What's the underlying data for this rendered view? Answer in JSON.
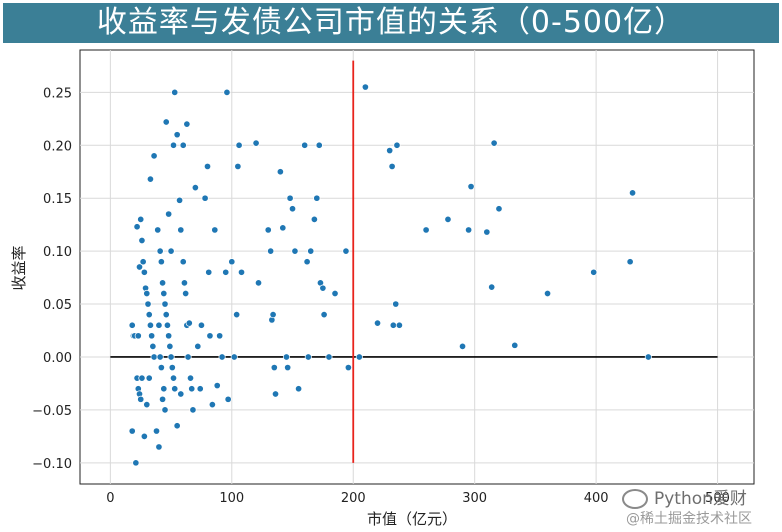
{
  "title": "收益率与发债公司市值的关系（0-500亿）",
  "watermarks": {
    "line1": "Python爱财",
    "line2": "@稀土掘金技术社区"
  },
  "colors": {
    "title_bg": "#3b7f96",
    "point": "#1f77b4",
    "vline": "#e8231c",
    "hline": "#000000",
    "grid": "#d9d9d9"
  },
  "chart_data": {
    "type": "scatter",
    "title": "收益率与发债公司市值的关系（0-500亿）",
    "xlabel": "市值（亿元）",
    "ylabel": "收益率",
    "xlim": [
      -25,
      530
    ],
    "ylim": [
      -0.12,
      0.29
    ],
    "xticks": [
      "0",
      "100",
      "200",
      "300",
      "400",
      "500"
    ],
    "yticks": [
      "0.25",
      "0.20",
      "0.15",
      "0.10",
      "0.05",
      "0.00",
      "−0.05",
      "−0.10"
    ],
    "xtick_values": [
      0,
      100,
      200,
      300,
      400,
      500
    ],
    "ytick_values": [
      0.25,
      0.2,
      0.15,
      0.1,
      0.05,
      0.0,
      -0.05,
      -0.1
    ],
    "grid": true,
    "reference_lines": {
      "horizontal": {
        "y": 0.0,
        "x_from": 0,
        "x_to": 500
      },
      "vertical": {
        "x": 200,
        "y_from": -0.1,
        "y_to": 0.28
      }
    },
    "points": [
      [
        18,
        0.03
      ],
      [
        19,
        0.02
      ],
      [
        20,
        0.02
      ],
      [
        21,
        -0.1
      ],
      [
        22,
        0.123
      ],
      [
        23,
        0.02
      ],
      [
        24,
        0.085
      ],
      [
        25,
        0.13
      ],
      [
        26,
        0.11
      ],
      [
        27,
        0.09
      ],
      [
        28,
        0.08
      ],
      [
        29,
        0.065
      ],
      [
        30,
        0.06
      ],
      [
        31,
        0.05
      ],
      [
        32,
        0.04
      ],
      [
        33,
        0.03
      ],
      [
        34,
        0.02
      ],
      [
        35,
        0.01
      ],
      [
        36,
        0.0
      ],
      [
        22,
        -0.02
      ],
      [
        23,
        -0.03
      ],
      [
        24,
        -0.035
      ],
      [
        25,
        -0.04
      ],
      [
        26,
        -0.02
      ],
      [
        28,
        -0.075
      ],
      [
        30,
        -0.045
      ],
      [
        32,
        -0.02
      ],
      [
        18,
        -0.07
      ],
      [
        40,
        -0.085
      ],
      [
        38,
        -0.07
      ],
      [
        33,
        0.168
      ],
      [
        36,
        0.19
      ],
      [
        39,
        0.12
      ],
      [
        41,
        0.1
      ],
      [
        42,
        0.09
      ],
      [
        43,
        0.07
      ],
      [
        44,
        0.06
      ],
      [
        45,
        0.05
      ],
      [
        46,
        0.04
      ],
      [
        47,
        0.03
      ],
      [
        48,
        0.02
      ],
      [
        49,
        0.01
      ],
      [
        50,
        0.0
      ],
      [
        51,
        -0.01
      ],
      [
        52,
        -0.02
      ],
      [
        53,
        -0.03
      ],
      [
        40,
        0.03
      ],
      [
        41,
        0.0
      ],
      [
        42,
        -0.01
      ],
      [
        43,
        -0.04
      ],
      [
        44,
        -0.03
      ],
      [
        45,
        -0.05
      ],
      [
        46,
        0.222
      ],
      [
        48,
        0.135
      ],
      [
        50,
        0.1
      ],
      [
        52,
        0.2
      ],
      [
        53,
        0.25
      ],
      [
        55,
        0.21
      ],
      [
        57,
        0.148
      ],
      [
        58,
        0.12
      ],
      [
        60,
        0.09
      ],
      [
        61,
        0.07
      ],
      [
        62,
        0.06
      ],
      [
        63,
        0.03
      ],
      [
        64,
        0.0
      ],
      [
        55,
        -0.065
      ],
      [
        58,
        -0.035
      ],
      [
        60,
        0.2
      ],
      [
        63,
        0.22
      ],
      [
        65,
        0.032
      ],
      [
        66,
        -0.02
      ],
      [
        67,
        -0.03
      ],
      [
        68,
        -0.05
      ],
      [
        70,
        0.16
      ],
      [
        72,
        0.01
      ],
      [
        74,
        -0.03
      ],
      [
        75,
        0.03
      ],
      [
        78,
        0.15
      ],
      [
        80,
        0.18
      ],
      [
        81,
        0.08
      ],
      [
        82,
        0.02
      ],
      [
        84,
        -0.045
      ],
      [
        86,
        0.12
      ],
      [
        88,
        -0.027
      ],
      [
        90,
        0.02
      ],
      [
        92,
        0.0
      ],
      [
        95,
        0.08
      ],
      [
        96,
        0.25
      ],
      [
        97,
        -0.04
      ],
      [
        100,
        0.09
      ],
      [
        102,
        0.0
      ],
      [
        104,
        0.04
      ],
      [
        105,
        0.18
      ],
      [
        106,
        0.2
      ],
      [
        108,
        0.08
      ],
      [
        120,
        0.202
      ],
      [
        122,
        0.07
      ],
      [
        130,
        0.12
      ],
      [
        132,
        0.1
      ],
      [
        133,
        0.035
      ],
      [
        134,
        0.04
      ],
      [
        135,
        -0.01
      ],
      [
        136,
        -0.035
      ],
      [
        140,
        0.175
      ],
      [
        142,
        0.122
      ],
      [
        145,
        0.0
      ],
      [
        146,
        -0.01
      ],
      [
        148,
        0.15
      ],
      [
        150,
        0.14
      ],
      [
        152,
        0.1
      ],
      [
        155,
        -0.03
      ],
      [
        160,
        0.2
      ],
      [
        162,
        0.09
      ],
      [
        163,
        0.0
      ],
      [
        165,
        0.1
      ],
      [
        168,
        0.13
      ],
      [
        170,
        0.15
      ],
      [
        172,
        0.2
      ],
      [
        173,
        0.07
      ],
      [
        175,
        0.065
      ],
      [
        176,
        0.04
      ],
      [
        180,
        0.0
      ],
      [
        185,
        0.06
      ],
      [
        194,
        0.1
      ],
      [
        196,
        -0.01
      ],
      [
        205,
        0.0
      ],
      [
        210,
        0.255
      ],
      [
        220,
        0.032
      ],
      [
        230,
        0.195
      ],
      [
        232,
        0.18
      ],
      [
        233,
        0.03
      ],
      [
        235,
        0.05
      ],
      [
        236,
        0.2
      ],
      [
        238,
        0.03
      ],
      [
        260,
        0.12
      ],
      [
        278,
        0.13
      ],
      [
        290,
        0.01
      ],
      [
        295,
        0.12
      ],
      [
        297,
        0.161
      ],
      [
        310,
        0.118
      ],
      [
        314,
        0.066
      ],
      [
        316,
        0.202
      ],
      [
        320,
        0.14
      ],
      [
        333,
        0.011
      ],
      [
        360,
        0.06
      ],
      [
        398,
        0.08
      ],
      [
        428,
        0.09
      ],
      [
        430,
        0.155
      ],
      [
        443,
        0.0
      ]
    ]
  }
}
